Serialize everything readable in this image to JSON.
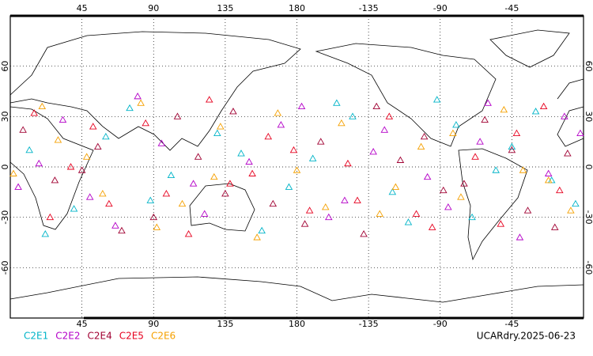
{
  "chart_data": {
    "type": "scatter",
    "label": "UCARdry.2025-06-23",
    "xlim": [
      0,
      360
    ],
    "ylim": [
      -90,
      90
    ],
    "xticks": [
      45,
      90,
      135,
      180,
      {
        "value": 225,
        "label": "-135"
      },
      {
        "value": 270,
        "label": "-90"
      },
      {
        "value": 315,
        "label": "-45"
      }
    ],
    "yticks": [
      -60,
      -30,
      0,
      30,
      60
    ],
    "grid": true,
    "legend": "bottom-left",
    "series": [
      {
        "name": "C2E1",
        "color": "#00b4c8",
        "x": [
          12,
          40,
          75,
          101,
          130,
          158,
          190,
          215,
          240,
          268,
          290,
          315,
          340,
          22,
          60,
          88,
          145,
          175,
          205,
          250,
          280,
          305,
          330,
          355
        ],
        "y": [
          10,
          -25,
          35,
          -5,
          20,
          -38,
          5,
          30,
          -15,
          40,
          -30,
          12,
          -8,
          -40,
          18,
          -20,
          8,
          -12,
          38,
          -33,
          25,
          -2,
          33,
          -22
        ]
      },
      {
        "name": "C2E2",
        "color": "#b400c8",
        "x": [
          5,
          33,
          66,
          95,
          122,
          150,
          183,
          210,
          235,
          262,
          295,
          320,
          348,
          18,
          50,
          80,
          115,
          170,
          200,
          228,
          275,
          300,
          338,
          358
        ],
        "y": [
          -12,
          28,
          -35,
          14,
          -28,
          3,
          36,
          -20,
          22,
          -6,
          15,
          -42,
          30,
          2,
          -18,
          42,
          -10,
          25,
          -30,
          9,
          -24,
          38,
          -4,
          20
        ]
      },
      {
        "name": "C2E4",
        "color": "#a00032",
        "x": [
          8,
          28,
          55,
          90,
          118,
          140,
          165,
          195,
          222,
          245,
          272,
          298,
          325,
          350,
          45,
          70,
          105,
          135,
          185,
          230,
          260,
          285,
          315,
          342
        ],
        "y": [
          22,
          -8,
          12,
          -30,
          6,
          33,
          -22,
          15,
          -40,
          4,
          -14,
          28,
          -26,
          8,
          -2,
          -38,
          30,
          -16,
          -34,
          36,
          18,
          -10,
          10,
          -36
        ]
      },
      {
        "name": "C2E5",
        "color": "#e6001e",
        "x": [
          15,
          38,
          62,
          85,
          112,
          138,
          162,
          188,
          212,
          238,
          265,
          292,
          318,
          345,
          25,
          52,
          98,
          125,
          152,
          178,
          218,
          255,
          308,
          335
        ],
        "y": [
          32,
          0,
          -22,
          26,
          -40,
          -10,
          18,
          -26,
          2,
          30,
          -36,
          6,
          20,
          -14,
          -30,
          24,
          -16,
          40,
          -4,
          10,
          -20,
          -28,
          -34,
          36
        ]
      },
      {
        "name": "C2E6",
        "color": "#f5a000",
        "x": [
          2,
          30,
          58,
          82,
          108,
          132,
          155,
          180,
          208,
          232,
          258,
          283,
          310,
          338,
          20,
          48,
          92,
          128,
          168,
          198,
          242,
          278,
          322,
          352
        ],
        "y": [
          -4,
          16,
          -16,
          38,
          -22,
          24,
          -42,
          -2,
          26,
          -28,
          12,
          -18,
          34,
          -8,
          36,
          6,
          -36,
          -6,
          32,
          -24,
          -12,
          20,
          -2,
          -26
        ]
      }
    ]
  }
}
